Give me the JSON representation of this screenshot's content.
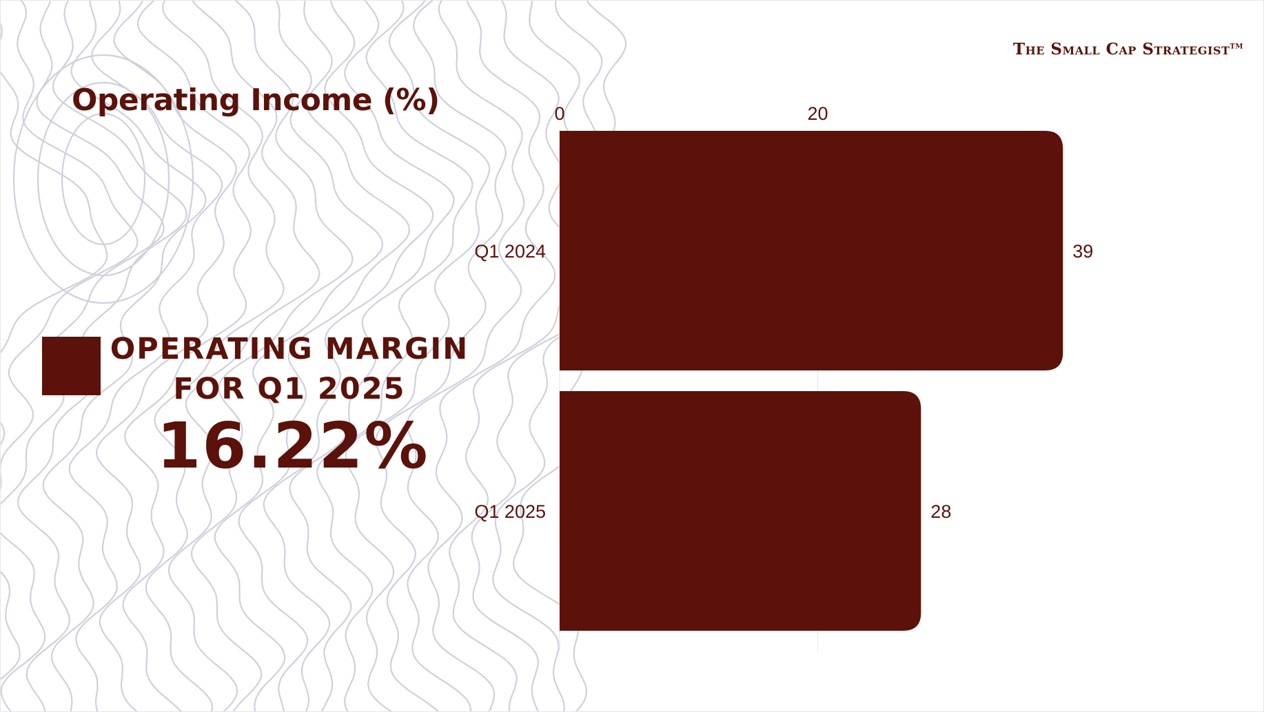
{
  "brand": {
    "name": "The Small Cap Strategist",
    "trademark": "TM"
  },
  "kpi": {
    "label_line1": "OPERATING MARGIN",
    "label_line2": "FOR Q1 2025",
    "value": "16.22%"
  },
  "colors": {
    "bar": "#5c120a",
    "text": "#5a120a",
    "contour": "#cfd0dd"
  },
  "chart_data": {
    "type": "bar",
    "orientation": "horizontal",
    "title": "Operating Income (%)",
    "categories": [
      "Q1 2024",
      "Q1 2025"
    ],
    "values": [
      39,
      28
    ],
    "xlim": [
      0,
      40
    ],
    "x_ticks": [
      0,
      20
    ],
    "x_axis_position": "top",
    "data_labels": true,
    "grid": true
  }
}
